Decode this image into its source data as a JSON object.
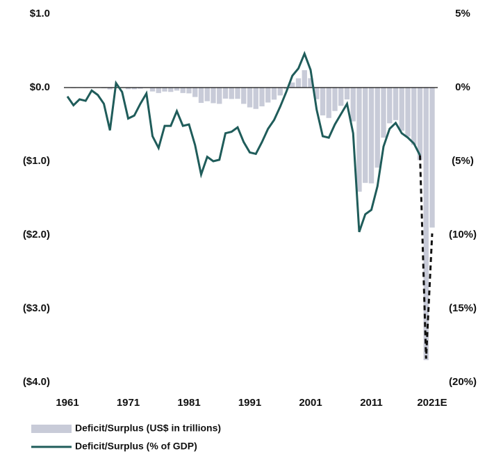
{
  "chart_data": {
    "type": "bar-line",
    "categories": [
      "1961",
      null,
      null,
      null,
      null,
      null,
      null,
      null,
      null,
      null,
      "1971",
      null,
      null,
      null,
      null,
      null,
      null,
      null,
      null,
      null,
      "1981",
      null,
      null,
      null,
      null,
      null,
      null,
      null,
      null,
      null,
      "1991",
      null,
      null,
      null,
      null,
      null,
      null,
      null,
      null,
      null,
      "2001",
      null,
      null,
      null,
      null,
      null,
      null,
      null,
      null,
      null,
      "2011",
      null,
      null,
      null,
      null,
      null,
      null,
      null,
      null,
      null,
      "2021E"
    ],
    "series": [
      {
        "name": "Deficit/Surplus (US$ in trillions)",
        "type": "bar",
        "axis": "y",
        "color": "#c8cbd8",
        "values": [
          -0.003,
          -0.007,
          -0.005,
          -0.006,
          -0.001,
          -0.004,
          -0.009,
          -0.025,
          0.003,
          -0.003,
          -0.023,
          -0.023,
          -0.015,
          -0.006,
          -0.053,
          -0.074,
          -0.054,
          -0.059,
          -0.041,
          -0.074,
          -0.079,
          -0.128,
          -0.208,
          -0.185,
          -0.212,
          -0.221,
          -0.15,
          -0.155,
          -0.153,
          -0.221,
          -0.269,
          -0.29,
          -0.255,
          -0.203,
          -0.164,
          -0.107,
          -0.022,
          0.069,
          0.126,
          0.236,
          0.128,
          -0.158,
          -0.378,
          -0.413,
          -0.318,
          -0.248,
          -0.161,
          -0.459,
          -1.413,
          -1.294,
          -1.3,
          -1.087,
          -0.68,
          -0.485,
          -0.442,
          -0.585,
          -0.665,
          -0.779,
          -0.984,
          -3.7,
          -1.9
        ]
      },
      {
        "name": "Deficit/Surplus (% of GDP)",
        "type": "line",
        "axis": "y2",
        "color": "#1f5c5a",
        "values": [
          -0.6,
          -1.2,
          -0.8,
          -0.9,
          -0.2,
          -0.5,
          -1.1,
          -2.9,
          0.3,
          -0.3,
          -2.1,
          -1.9,
          -1.1,
          -0.4,
          -3.3,
          -4.1,
          -2.6,
          -2.6,
          -1.6,
          -2.6,
          -2.5,
          -3.9,
          -5.9,
          -4.7,
          -5.0,
          -4.9,
          -3.1,
          -3.0,
          -2.7,
          -3.7,
          -4.4,
          -4.5,
          -3.7,
          -2.8,
          -2.2,
          -1.3,
          -0.3,
          0.8,
          1.3,
          2.3,
          1.2,
          -1.5,
          -3.3,
          -3.4,
          -2.5,
          -1.8,
          -1.1,
          -3.1,
          -9.8,
          -8.6,
          -8.3,
          -6.7,
          -4.0,
          -2.8,
          -2.4,
          -3.1,
          -3.4,
          -3.8,
          -4.6,
          -18.4,
          -9.9
        ]
      }
    ],
    "ylim": [
      -4,
      1
    ],
    "yticks": [
      {
        "value": 1,
        "label": "$1.0"
      },
      {
        "value": 0,
        "label": "$0.0"
      },
      {
        "value": -1,
        "label": "($1.0)"
      },
      {
        "value": -2,
        "label": "($2.0)"
      },
      {
        "value": -3,
        "label": "($3.0)"
      },
      {
        "value": -4,
        "label": "($4.0)"
      }
    ],
    "y2lim": [
      -20,
      5
    ],
    "y2ticks": [
      {
        "value": 5,
        "label": "5%"
      },
      {
        "value": 0,
        "label": "0%"
      },
      {
        "value": -5,
        "label": "(5%)"
      },
      {
        "value": -10,
        "label": "(10%)"
      },
      {
        "value": -15,
        "label": "(15%)"
      },
      {
        "value": -20,
        "label": "(20%)"
      }
    ],
    "grid": false
  }
}
